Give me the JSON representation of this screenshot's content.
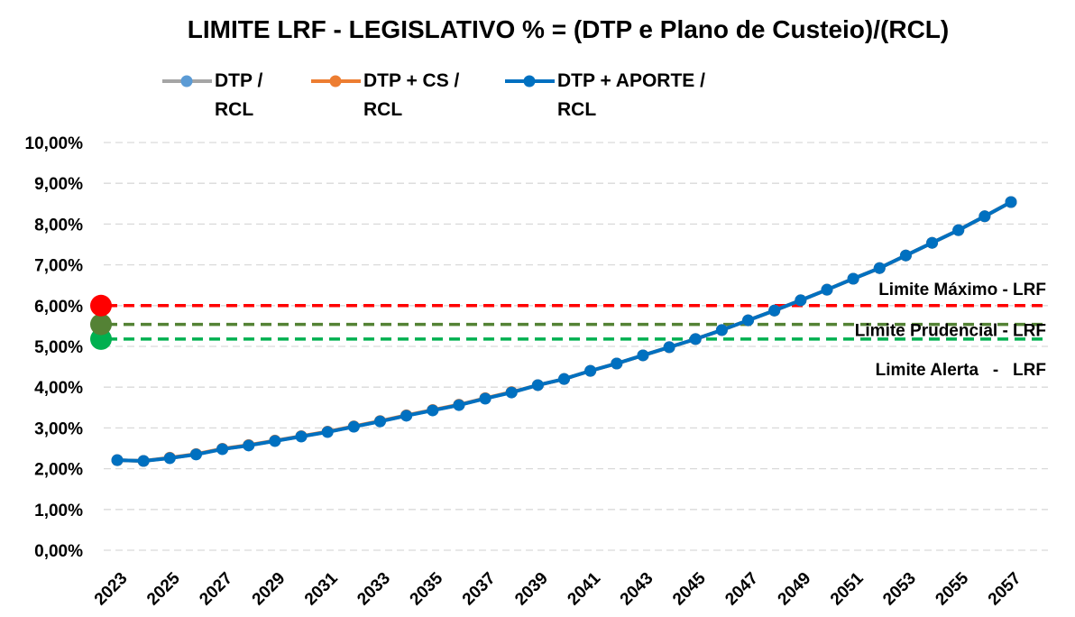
{
  "chart_data": {
    "type": "line",
    "title": "LIMITE LRF - LEGISLATIVO % = (DTP e Plano de Custeio)/(RCL)",
    "categories": [
      "2023",
      null,
      "2025",
      null,
      "2027",
      null,
      "2029",
      null,
      "2031",
      null,
      "2033",
      null,
      "2035",
      null,
      "2037",
      null,
      "2039",
      null,
      "2041",
      null,
      "2043",
      null,
      "2045",
      null,
      "2047",
      null,
      "2049",
      null,
      "2051",
      null,
      "2053",
      null,
      "2055",
      null,
      "2057"
    ],
    "series": [
      {
        "name": "DTP / RCL",
        "color": "#a5a5a5",
        "marker_color": "#5b9bd5",
        "values": [
          2.21,
          2.19,
          2.26,
          2.35,
          2.48,
          2.57,
          2.68,
          2.79,
          2.9,
          3.03,
          3.16,
          3.3,
          3.43,
          3.56,
          3.72,
          3.87,
          4.05,
          4.2,
          4.4,
          4.58,
          4.78,
          4.98,
          5.18,
          5.4,
          5.64,
          5.88,
          6.13,
          6.39,
          6.66,
          6.92,
          7.23,
          7.54,
          7.85,
          8.19,
          8.54
        ]
      },
      {
        "name": "DTP + CS / RCL",
        "color": "#ed7d31",
        "marker_color": "#ed7d31",
        "values": [
          2.21,
          2.19,
          2.27,
          2.36,
          2.49,
          2.58,
          2.69,
          2.8,
          2.91,
          3.04,
          3.17,
          3.31,
          3.44,
          3.57,
          3.73,
          3.88,
          4.05,
          4.2,
          4.4,
          4.58,
          4.78,
          4.98,
          5.18,
          5.4,
          5.64,
          5.88,
          6.13,
          6.39,
          6.66,
          6.92,
          7.23,
          7.54,
          7.85,
          8.19,
          8.54
        ]
      },
      {
        "name": "DTP + APORTE / RCL",
        "color": "#0070c0",
        "marker_color": "#0070c0",
        "values": [
          2.21,
          2.19,
          2.26,
          2.35,
          2.48,
          2.57,
          2.68,
          2.79,
          2.9,
          3.03,
          3.16,
          3.3,
          3.43,
          3.56,
          3.72,
          3.87,
          4.05,
          4.2,
          4.4,
          4.58,
          4.78,
          4.98,
          5.18,
          5.4,
          5.64,
          5.88,
          6.13,
          6.39,
          6.66,
          6.92,
          7.23,
          7.54,
          7.85,
          8.19,
          8.54
        ]
      }
    ],
    "limits": [
      {
        "name": "Limite Máximo - LRF",
        "value": 6,
        "color": "#ff0000"
      },
      {
        "name": "Limite Prudencial - LRF",
        "value": 5.54,
        "color": "#548235"
      },
      {
        "name": "Limite Alerta   -   LRF",
        "value": 5.18,
        "color": "#00b050"
      }
    ],
    "ylim": [
      0,
      10
    ],
    "yticks": [
      {
        "value": 0,
        "label": "0,00%"
      },
      {
        "value": 1,
        "label": "1,00%"
      },
      {
        "value": 2,
        "label": "2,00%"
      },
      {
        "value": 3,
        "label": "3,00%"
      },
      {
        "value": 4,
        "label": "4,00%"
      },
      {
        "value": 5,
        "label": "5,00%"
      },
      {
        "value": 6,
        "label": "6,00%"
      },
      {
        "value": 7,
        "label": "7,00%"
      },
      {
        "value": 8,
        "label": "8,00%"
      },
      {
        "value": 9,
        "label": "9,00%"
      },
      {
        "value": 10,
        "label": "10,00%"
      }
    ],
    "grid": true
  }
}
